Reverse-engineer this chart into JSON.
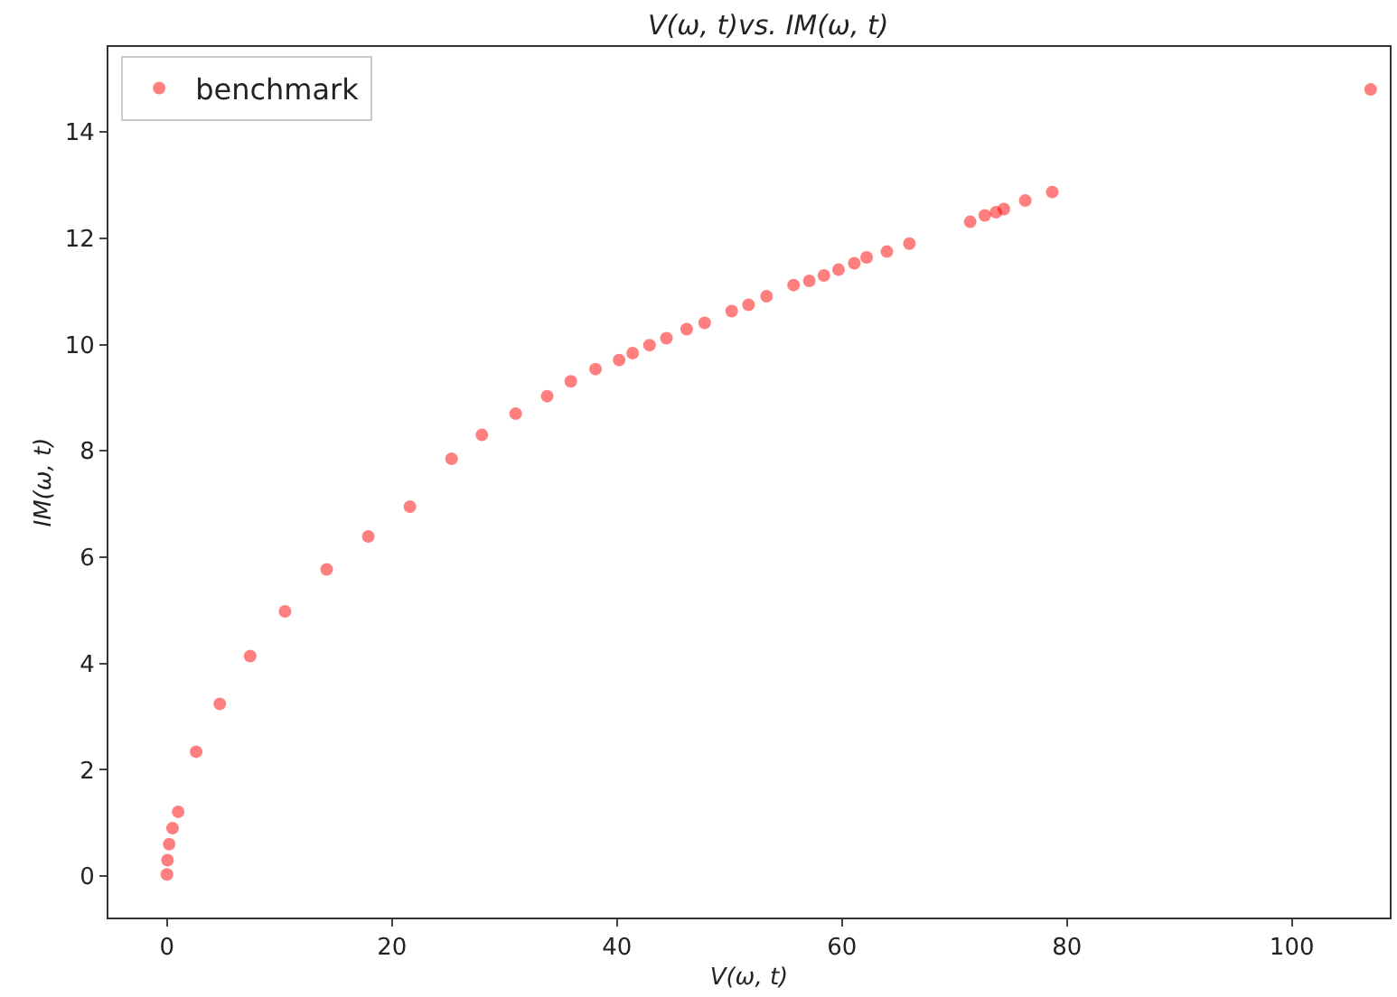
{
  "chart_data": {
    "type": "scatter",
    "title": "V(ω, t)vs. IM(ω, t)",
    "xlabel": "V(ω, t)",
    "ylabel": "IM(ω, t)",
    "x": [
      0,
      0.05,
      0.2,
      0.5,
      1.0,
      2.6,
      4.7,
      7.4,
      10.5,
      14.2,
      17.9,
      21.6,
      25.3,
      28,
      31,
      33.8,
      35.9,
      38.1,
      40.2,
      41.4,
      42.9,
      44.4,
      46.2,
      47.8,
      50.2,
      51.7,
      53.3,
      55.7,
      57.1,
      58.4,
      59.7,
      61.1,
      62.2,
      64.0,
      66.0,
      71.4,
      72.7,
      73.7,
      74.4,
      76.3,
      78.7,
      107
    ],
    "series": [
      {
        "name": "benchmark",
        "color": "#ff0000",
        "values": [
          0.03,
          0.3,
          0.6,
          0.9,
          1.21,
          2.34,
          3.24,
          4.14,
          4.98,
          5.77,
          6.39,
          6.95,
          7.85,
          8.3,
          8.7,
          9.03,
          9.31,
          9.54,
          9.71,
          9.84,
          9.99,
          10.12,
          10.29,
          10.41,
          10.63,
          10.75,
          10.91,
          11.12,
          11.2,
          11.3,
          11.41,
          11.53,
          11.64,
          11.75,
          11.9,
          12.31,
          12.43,
          12.49,
          12.55,
          12.71,
          12.87,
          14.8
        ]
      }
    ],
    "xlim": [
      -5.2,
      108.7
    ],
    "ylim": [
      -0.78,
      15.6
    ],
    "xticks": [
      0,
      20,
      40,
      60,
      80,
      100
    ],
    "yticks": [
      0,
      2,
      4,
      6,
      8,
      10,
      12,
      14
    ],
    "legend": "top left",
    "grid": false,
    "marker": "circle"
  }
}
